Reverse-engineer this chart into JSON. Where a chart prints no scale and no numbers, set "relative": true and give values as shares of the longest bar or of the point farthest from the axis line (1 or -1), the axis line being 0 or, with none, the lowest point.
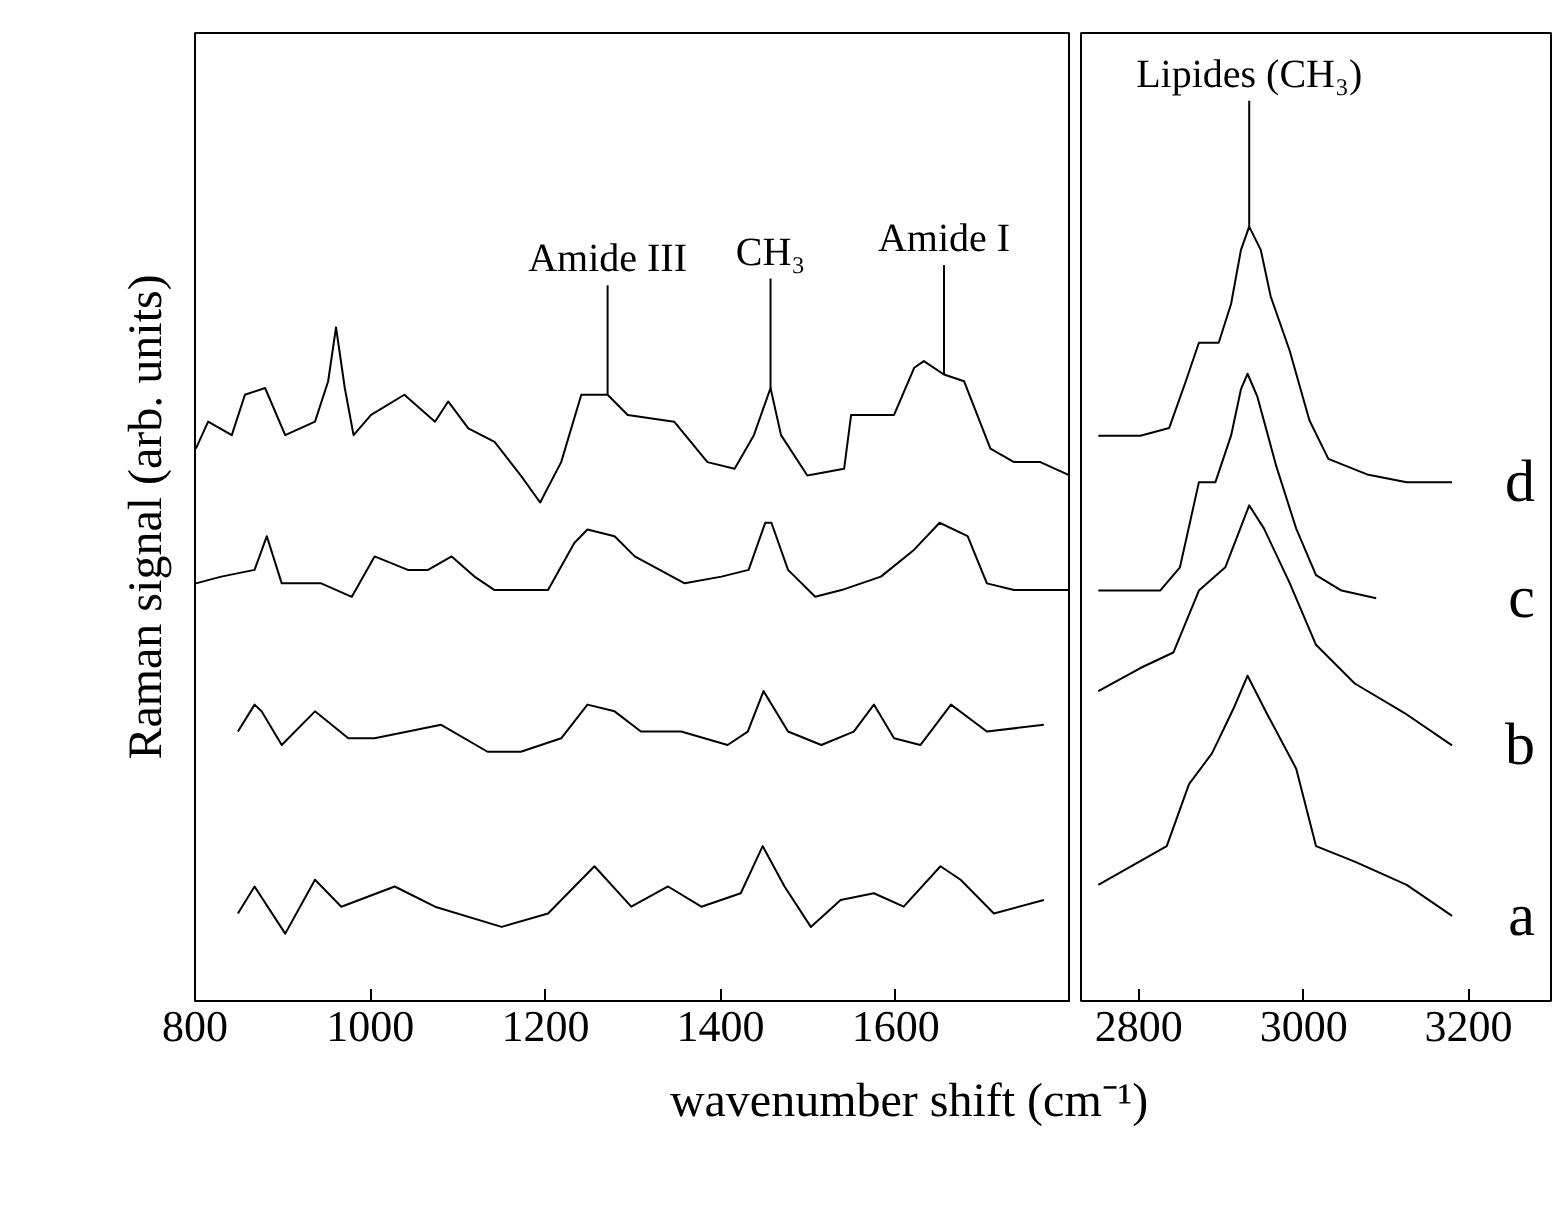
{
  "chart_data": [
    {
      "type": "line",
      "relative": true,
      "ylabel": "Raman signal (arb. units)",
      "xlabel": "wavenumber shift (cm⁻¹)",
      "xlim": [
        800,
        1800
      ],
      "xticks": [
        800,
        1000,
        1200,
        1400,
        1600
      ],
      "grid": false,
      "line_style": "solid",
      "marker": "none",
      "annotations": [
        {
          "text": "Amide III",
          "x": 1271,
          "y": 0.9
        },
        {
          "text": "CH₃",
          "x": 1457,
          "y": 0.91
        },
        {
          "text": "Amide I",
          "x": 1655,
          "y": 0.93
        }
      ],
      "series": [
        {
          "color": "#000000",
          "x": [
            801,
            815,
            842,
            857,
            880,
            903,
            937,
            952,
            961,
            971,
            981,
            1001,
            1039,
            1074,
            1089,
            1112,
            1142,
            1172,
            1194,
            1218,
            1241,
            1271,
            1294,
            1347,
            1385,
            1416,
            1438,
            1457,
            1469,
            1499,
            1541,
            1549,
            1598,
            1621,
            1632,
            1655,
            1678,
            1708,
            1735,
            1765,
            1799
          ],
          "values": [
            0.82,
            0.86,
            0.84,
            0.9,
            0.91,
            0.84,
            0.86,
            0.92,
            1.0,
            0.91,
            0.84,
            0.87,
            0.9,
            0.86,
            0.89,
            0.85,
            0.83,
            0.78,
            0.74,
            0.8,
            0.9,
            0.9,
            0.87,
            0.86,
            0.8,
            0.79,
            0.84,
            0.91,
            0.84,
            0.78,
            0.79,
            0.87,
            0.87,
            0.94,
            0.95,
            0.93,
            0.92,
            0.82,
            0.8,
            0.8,
            0.78
          ]
        },
        {
          "color": "#000000",
          "x": [
            801,
            830,
            868,
            882,
            899,
            944,
            979,
            1005,
            1043,
            1066,
            1093,
            1119,
            1142,
            1203,
            1233,
            1248,
            1279,
            1302,
            1359,
            1401,
            1432,
            1451,
            1458,
            1477,
            1508,
            1538,
            1583,
            1621,
            1650,
            1682,
            1704,
            1735,
            1799
          ],
          "values": [
            0.62,
            0.63,
            0.64,
            0.69,
            0.62,
            0.62,
            0.6,
            0.66,
            0.64,
            0.64,
            0.66,
            0.63,
            0.61,
            0.61,
            0.68,
            0.7,
            0.69,
            0.66,
            0.62,
            0.63,
            0.64,
            0.71,
            0.71,
            0.64,
            0.6,
            0.61,
            0.63,
            0.67,
            0.71,
            0.69,
            0.62,
            0.61,
            0.61
          ]
        },
        {
          "color": "#000000",
          "x": [
            849,
            868,
            876,
            899,
            937,
            975,
            1005,
            1081,
            1134,
            1172,
            1218,
            1248,
            1279,
            1309,
            1355,
            1408,
            1431,
            1449,
            1477,
            1515,
            1552,
            1575,
            1598,
            1628,
            1663,
            1704,
            1769
          ],
          "values": [
            0.4,
            0.44,
            0.43,
            0.38,
            0.43,
            0.39,
            0.39,
            0.41,
            0.37,
            0.37,
            0.39,
            0.44,
            0.43,
            0.4,
            0.4,
            0.38,
            0.4,
            0.46,
            0.4,
            0.38,
            0.4,
            0.44,
            0.39,
            0.38,
            0.44,
            0.4,
            0.41
          ]
        },
        {
          "color": "#000000",
          "x": [
            849,
            868,
            903,
            937,
            967,
            1028,
            1074,
            1150,
            1203,
            1256,
            1298,
            1340,
            1378,
            1423,
            1448,
            1473,
            1503,
            1537,
            1575,
            1609,
            1651,
            1674,
            1712,
            1769
          ],
          "values": [
            0.13,
            0.17,
            0.1,
            0.18,
            0.14,
            0.17,
            0.14,
            0.11,
            0.13,
            0.2,
            0.14,
            0.17,
            0.14,
            0.16,
            0.23,
            0.17,
            0.11,
            0.15,
            0.16,
            0.14,
            0.2,
            0.18,
            0.13,
            0.15
          ]
        }
      ]
    },
    {
      "type": "line",
      "relative": true,
      "xlim": [
        2730,
        3300
      ],
      "xticks": [
        2800,
        3000,
        3200
      ],
      "grid": false,
      "line_style": "solid",
      "marker": "none",
      "tick_labels": "x",
      "annotations": [
        {
          "text": "Lipides (CH₃)",
          "x": 2934,
          "y": 1.0
        }
      ],
      "series": [
        {
          "name": "d",
          "color": "#000000",
          "x": [
            2751,
            2802,
            2837,
            2857,
            2873,
            2897,
            2912,
            2924,
            2934,
            2948,
            2960,
            2983,
            3007,
            3030,
            3077,
            3125,
            3180
          ],
          "values": [
            0.73,
            0.73,
            0.74,
            0.8,
            0.85,
            0.85,
            0.9,
            0.97,
            1.0,
            0.97,
            0.91,
            0.84,
            0.75,
            0.7,
            0.68,
            0.67,
            0.67
          ]
        },
        {
          "name": "c",
          "color": "#000000",
          "x": [
            2751,
            2826,
            2850,
            2873,
            2893,
            2912,
            2924,
            2932,
            2944,
            2967,
            2991,
            3015,
            3046,
            3088
          ],
          "values": [
            0.53,
            0.53,
            0.56,
            0.67,
            0.67,
            0.73,
            0.79,
            0.81,
            0.78,
            0.69,
            0.61,
            0.55,
            0.53,
            0.52
          ]
        },
        {
          "name": "b",
          "color": "#000000",
          "x": [
            2751,
            2802,
            2842,
            2873,
            2905,
            2934,
            2952,
            2983,
            3015,
            3062,
            3125,
            3180
          ],
          "values": [
            0.4,
            0.43,
            0.45,
            0.53,
            0.56,
            0.64,
            0.61,
            0.54,
            0.46,
            0.41,
            0.37,
            0.33
          ]
        },
        {
          "name": "a",
          "color": "#000000",
          "x": [
            2751,
            2834,
            2861,
            2889,
            2916,
            2932,
            2956,
            2991,
            3015,
            3062,
            3125,
            3180
          ],
          "values": [
            0.15,
            0.2,
            0.28,
            0.32,
            0.38,
            0.42,
            0.37,
            0.3,
            0.2,
            0.18,
            0.15,
            0.11
          ]
        }
      ]
    }
  ]
}
